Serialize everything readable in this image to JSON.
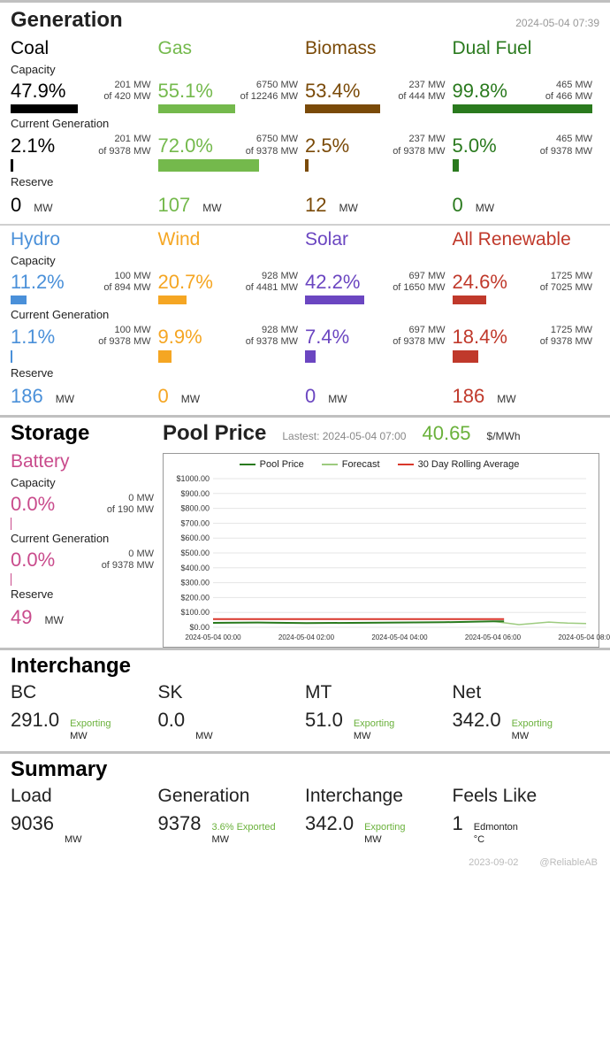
{
  "timestamp": "2024-05-04 07:39",
  "sections": {
    "generation": "Generation",
    "storage": "Storage",
    "poolprice": "Pool Price",
    "interchange": "Interchange",
    "summary": "Summary"
  },
  "labels": {
    "capacity": "Capacity",
    "current_gen": "Current Generation",
    "reserve": "Reserve",
    "mw": "MW",
    "permwh": "$/MWh"
  },
  "total_gen_mw": 9378,
  "sources_top": [
    {
      "name": "Coal",
      "color": "#000000",
      "cap_pct": "47.9%",
      "cap_mw": 201,
      "cap_of": 420,
      "gen_pct": "2.1%",
      "gen_mw": 201,
      "reserve": 0,
      "cap_bar": 47.9,
      "gen_bar": 2.1
    },
    {
      "name": "Gas",
      "color": "#74b94c",
      "cap_pct": "55.1%",
      "cap_mw": 6750,
      "cap_of": 12246,
      "gen_pct": "72.0%",
      "gen_mw": 6750,
      "reserve": 107,
      "cap_bar": 55.1,
      "gen_bar": 72.0
    },
    {
      "name": "Biomass",
      "color": "#7a4a08",
      "cap_pct": "53.4%",
      "cap_mw": 237,
      "cap_of": 444,
      "gen_pct": "2.5%",
      "gen_mw": 237,
      "reserve": 12,
      "cap_bar": 53.4,
      "gen_bar": 2.5
    },
    {
      "name": "Dual Fuel",
      "color": "#2a7a1e",
      "cap_pct": "99.8%",
      "cap_mw": 465,
      "cap_of": 466,
      "gen_pct": "5.0%",
      "gen_mw": 465,
      "reserve": 0,
      "cap_bar": 99.8,
      "gen_bar": 5.0
    }
  ],
  "sources_bottom": [
    {
      "name": "Hydro",
      "color": "#4a90d9",
      "cap_pct": "11.2%",
      "cap_mw": 100,
      "cap_of": 894,
      "gen_pct": "1.1%",
      "gen_mw": 100,
      "reserve": 186,
      "cap_bar": 11.2,
      "gen_bar": 1.1
    },
    {
      "name": "Wind",
      "color": "#f5a623",
      "cap_pct": "20.7%",
      "cap_mw": 928,
      "cap_of": 4481,
      "gen_pct": "9.9%",
      "gen_mw": 928,
      "reserve": 0,
      "cap_bar": 20.7,
      "gen_bar": 9.9
    },
    {
      "name": "Solar",
      "color": "#6b46c1",
      "cap_pct": "42.2%",
      "cap_mw": 697,
      "cap_of": 1650,
      "gen_pct": "7.4%",
      "gen_mw": 697,
      "reserve": 0,
      "cap_bar": 42.2,
      "gen_bar": 7.4
    },
    {
      "name": "All Renewable",
      "color": "#c0392b",
      "cap_pct": "24.6%",
      "cap_mw": 1725,
      "cap_of": 7025,
      "gen_pct": "18.4%",
      "gen_mw": 1725,
      "reserve": 186,
      "cap_bar": 24.6,
      "gen_bar": 18.4
    }
  ],
  "storage": {
    "name": "Battery",
    "color": "#c94b8c",
    "cap_pct": "0.0%",
    "cap_mw": 0,
    "cap_of": 190,
    "gen_pct": "0.0%",
    "gen_mw": 0,
    "gen_of": 9378,
    "reserve": 49
  },
  "pool": {
    "latest_label": "Lastest: 2024-05-04 07:00",
    "price": "40.65",
    "price_color": "#6ab13b",
    "legend": [
      {
        "label": "Pool Price",
        "color": "#2a7a1e"
      },
      {
        "label": "Forecast",
        "color": "#9dcb7f"
      },
      {
        "label": "30 Day Rolling Average",
        "color": "#d9372b"
      }
    ],
    "chart": {
      "ylim": [
        0,
        1000
      ],
      "ytick_step": 100,
      "y_prefix": "$",
      "x_labels": [
        "2024-05-04 00:00",
        "2024-05-04 02:00",
        "2024-05-04 04:00",
        "2024-05-04 06:00",
        "2024-05-04 08:00"
      ],
      "x_positions": [
        0,
        0.25,
        0.5,
        0.75,
        1.0
      ],
      "grid_color": "#e5e5e5",
      "series": {
        "pool": {
          "color": "#2a7a1e",
          "points": [
            [
              0,
              30
            ],
            [
              0.12,
              32
            ],
            [
              0.25,
              28
            ],
            [
              0.37,
              30
            ],
            [
              0.5,
              32
            ],
            [
              0.62,
              34
            ],
            [
              0.75,
              40
            ],
            [
              0.78,
              40
            ]
          ]
        },
        "forecast": {
          "color": "#9dcb7f",
          "points": [
            [
              0,
              30
            ],
            [
              0.12,
              32
            ],
            [
              0.25,
              28
            ],
            [
              0.37,
              30
            ],
            [
              0.5,
              32
            ],
            [
              0.62,
              34
            ],
            [
              0.75,
              40
            ],
            [
              0.82,
              18
            ],
            [
              0.9,
              35
            ],
            [
              0.95,
              28
            ],
            [
              1.0,
              25
            ]
          ]
        },
        "avg": {
          "color": "#d9372b",
          "points": [
            [
              0,
              55
            ],
            [
              0.25,
              55
            ],
            [
              0.5,
              55
            ],
            [
              0.75,
              55
            ],
            [
              0.78,
              55
            ]
          ]
        }
      }
    }
  },
  "interchange": [
    {
      "name": "BC",
      "value": "291.0",
      "status": "Exporting",
      "unit": "MW"
    },
    {
      "name": "SK",
      "value": "0.0",
      "status": "",
      "unit": "MW"
    },
    {
      "name": "MT",
      "value": "51.0",
      "status": "Exporting",
      "unit": "MW"
    },
    {
      "name": "Net",
      "value": "342.0",
      "status": "Exporting",
      "unit": "MW"
    }
  ],
  "summary": [
    {
      "name": "Load",
      "value": "9036",
      "status": "",
      "unit": "MW"
    },
    {
      "name": "Generation",
      "value": "9378",
      "status": "3.6% Exported",
      "unit": "MW"
    },
    {
      "name": "Interchange",
      "value": "342.0",
      "status": "Exporting",
      "unit": "MW"
    },
    {
      "name": "Feels Like",
      "value": "1",
      "status": "Edmonton",
      "unit": "°C",
      "status_color": "#222"
    }
  ],
  "footer": {
    "date": "2023-09-02",
    "handle": "@ReliableAB"
  }
}
